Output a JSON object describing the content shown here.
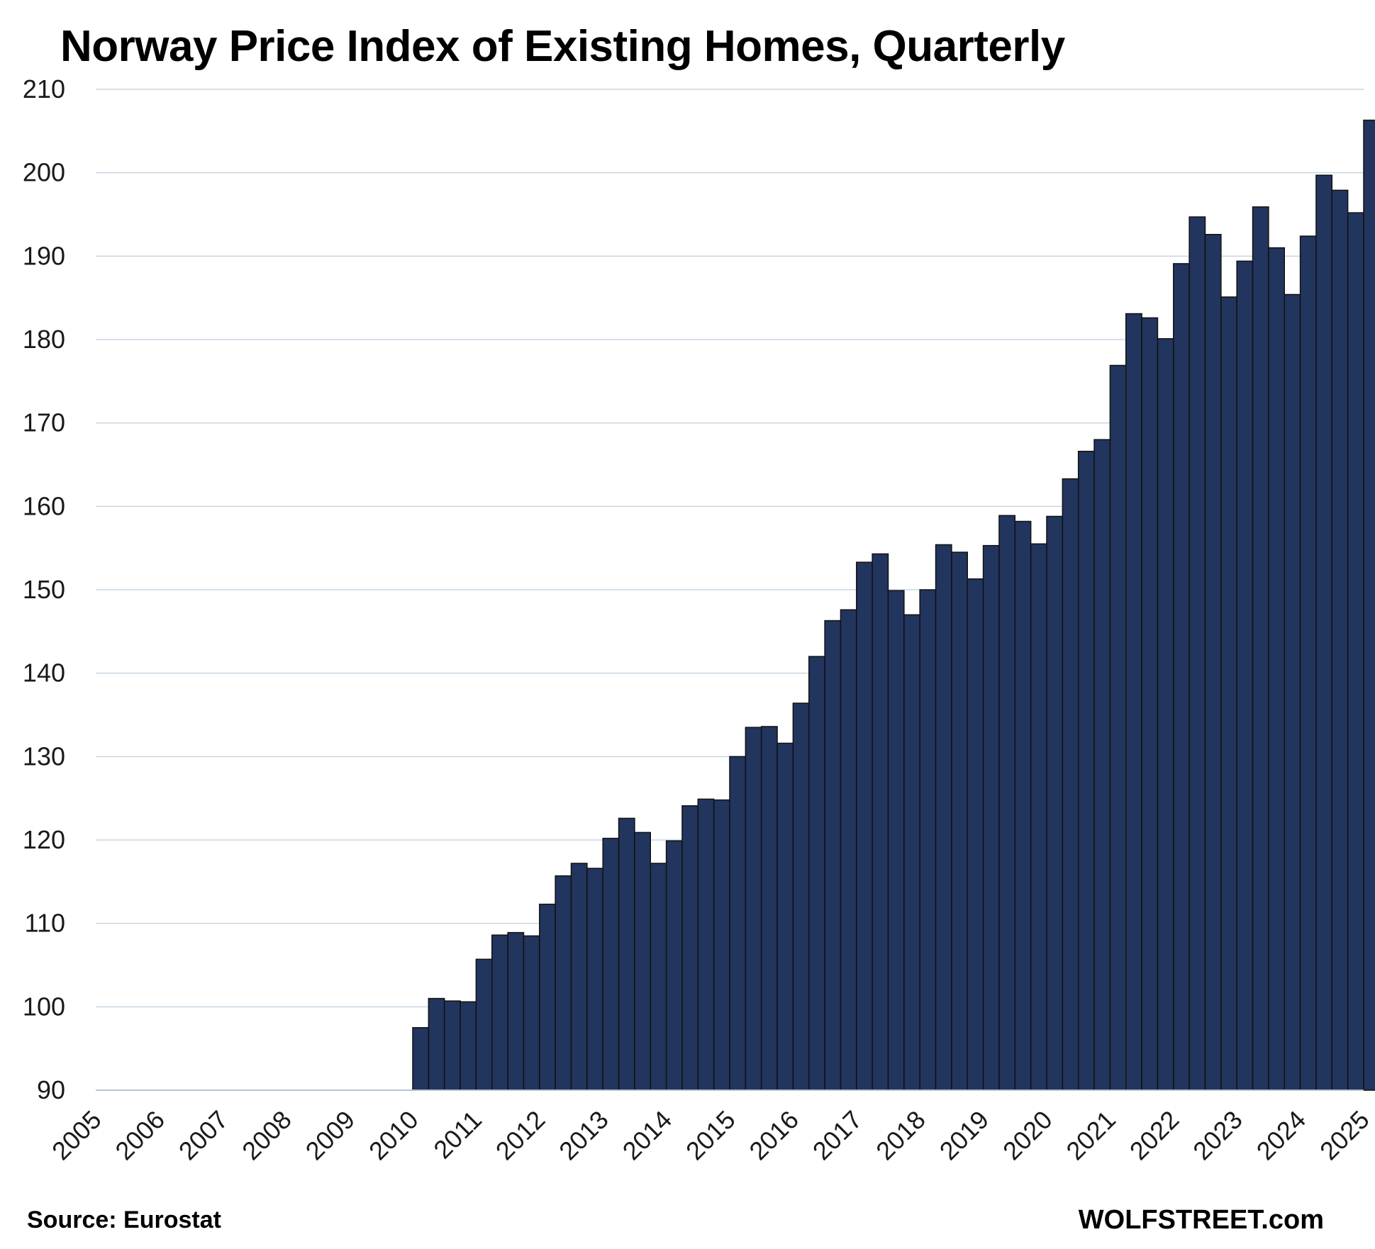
{
  "chart_data": {
    "type": "bar",
    "title": "Norway Price Index of Existing Homes, Quarterly",
    "xlabel": "",
    "ylabel": "",
    "ylim": [
      90,
      210
    ],
    "y_ticks": [
      90,
      100,
      110,
      120,
      130,
      140,
      150,
      160,
      170,
      180,
      190,
      200,
      210
    ],
    "x_ticks": [
      "2005",
      "2006",
      "2007",
      "2008",
      "2009",
      "2010",
      "2011",
      "2012",
      "2013",
      "2014",
      "2015",
      "2016",
      "2017",
      "2018",
      "2019",
      "2020",
      "2021",
      "2022",
      "2023",
      "2024",
      "2025"
    ],
    "grid": true,
    "legend": "none",
    "first_period": "2010 Q1",
    "series": [
      {
        "name": "Norway Price Index of Existing Homes",
        "color": "#22355e",
        "values": [
          97.5,
          101.0,
          100.7,
          100.6,
          105.7,
          108.6,
          108.9,
          108.5,
          112.3,
          115.7,
          117.2,
          116.6,
          120.2,
          122.6,
          120.9,
          117.2,
          119.9,
          124.1,
          124.9,
          124.8,
          130.0,
          133.5,
          133.6,
          131.6,
          136.4,
          142.0,
          146.3,
          147.6,
          153.3,
          154.3,
          149.9,
          147.0,
          150.0,
          155.4,
          154.5,
          151.3,
          155.3,
          158.9,
          158.2,
          155.5,
          158.8,
          163.3,
          166.6,
          168.0,
          176.9,
          183.1,
          182.6,
          180.1,
          189.1,
          194.7,
          192.6,
          185.1,
          189.4,
          195.9,
          191.0,
          185.4,
          192.4,
          199.7,
          197.9,
          195.2,
          206.3
        ]
      }
    ]
  },
  "footer": {
    "source": "Source: Eurostat",
    "brand": "WOLFSTREET.com"
  }
}
